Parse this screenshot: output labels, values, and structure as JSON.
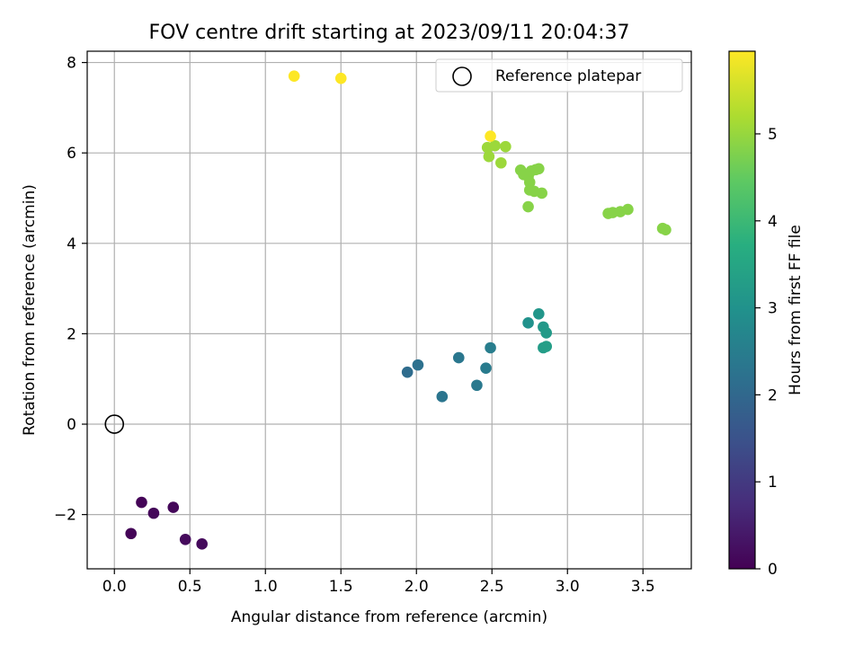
{
  "chart_data": {
    "type": "scatter",
    "title": "FOV centre drift starting at 2023/09/11 20:04:37",
    "xlabel": "Angular distance from reference (arcmin)",
    "ylabel": "Rotation from reference (arcmin)",
    "xlim": [
      -0.18,
      3.82
    ],
    "ylim": [
      -3.2,
      8.25
    ],
    "xticks": [
      0.0,
      0.5,
      1.0,
      1.5,
      2.0,
      2.5,
      3.0,
      3.5
    ],
    "xtick_labels": [
      "0.0",
      "0.5",
      "1.0",
      "1.5",
      "2.0",
      "2.5",
      "3.0",
      "3.5"
    ],
    "yticks": [
      -2,
      0,
      2,
      4,
      6,
      8
    ],
    "ytick_labels": [
      "−2",
      "0",
      "2",
      "4",
      "6",
      "8"
    ],
    "grid": true,
    "legend": {
      "placement": "top-right",
      "entries": [
        {
          "label": "Reference platepar",
          "marker": "open-circle"
        }
      ]
    },
    "reference_point": {
      "x": 0.0,
      "y": 0.0
    },
    "colorbar": {
      "label": "Hours from first FF file",
      "colormap": "viridis",
      "range": [
        0,
        5.95
      ],
      "ticks": [
        0,
        1,
        2,
        3,
        4,
        5
      ],
      "tick_labels": [
        "0",
        "1",
        "2",
        "3",
        "4",
        "5"
      ]
    },
    "points": [
      {
        "x": 0.11,
        "y": -2.42,
        "c": 0.05
      },
      {
        "x": 0.18,
        "y": -1.73,
        "c": 0.05
      },
      {
        "x": 0.26,
        "y": -1.97,
        "c": 0.1
      },
      {
        "x": 0.39,
        "y": -1.84,
        "c": 0.1
      },
      {
        "x": 0.47,
        "y": -2.55,
        "c": 0.15
      },
      {
        "x": 0.58,
        "y": -2.65,
        "c": 0.15
      },
      {
        "x": 1.94,
        "y": 1.15,
        "c": 2.1
      },
      {
        "x": 2.01,
        "y": 1.31,
        "c": 2.2
      },
      {
        "x": 2.17,
        "y": 0.61,
        "c": 2.3
      },
      {
        "x": 2.28,
        "y": 1.47,
        "c": 2.35
      },
      {
        "x": 2.4,
        "y": 0.86,
        "c": 2.4
      },
      {
        "x": 2.46,
        "y": 1.24,
        "c": 2.45
      },
      {
        "x": 2.49,
        "y": 1.69,
        "c": 2.5
      },
      {
        "x": 2.74,
        "y": 2.24,
        "c": 3.0
      },
      {
        "x": 2.81,
        "y": 2.44,
        "c": 3.1
      },
      {
        "x": 2.84,
        "y": 2.15,
        "c": 3.15
      },
      {
        "x": 2.86,
        "y": 2.02,
        "c": 3.2
      },
      {
        "x": 2.84,
        "y": 1.69,
        "c": 3.25
      },
      {
        "x": 2.86,
        "y": 1.72,
        "c": 3.3
      },
      {
        "x": 2.47,
        "y": 6.12,
        "c": 5.05
      },
      {
        "x": 2.52,
        "y": 6.16,
        "c": 5.05
      },
      {
        "x": 2.59,
        "y": 6.14,
        "c": 5.05
      },
      {
        "x": 2.48,
        "y": 5.92,
        "c": 5.05
      },
      {
        "x": 2.56,
        "y": 5.78,
        "c": 5.05
      },
      {
        "x": 2.69,
        "y": 5.62,
        "c": 4.85
      },
      {
        "x": 2.71,
        "y": 5.52,
        "c": 4.85
      },
      {
        "x": 2.74,
        "y": 5.48,
        "c": 4.85
      },
      {
        "x": 2.76,
        "y": 5.6,
        "c": 4.85
      },
      {
        "x": 2.79,
        "y": 5.63,
        "c": 4.85
      },
      {
        "x": 2.81,
        "y": 5.65,
        "c": 4.85
      },
      {
        "x": 2.75,
        "y": 5.35,
        "c": 4.85
      },
      {
        "x": 2.75,
        "y": 5.18,
        "c": 4.85
      },
      {
        "x": 2.78,
        "y": 5.15,
        "c": 4.85
      },
      {
        "x": 2.83,
        "y": 5.11,
        "c": 4.85
      },
      {
        "x": 2.74,
        "y": 4.81,
        "c": 4.85
      },
      {
        "x": 3.27,
        "y": 4.66,
        "c": 4.85
      },
      {
        "x": 3.3,
        "y": 4.68,
        "c": 4.85
      },
      {
        "x": 3.35,
        "y": 4.7,
        "c": 4.85
      },
      {
        "x": 3.4,
        "y": 4.75,
        "c": 4.85
      },
      {
        "x": 3.63,
        "y": 4.33,
        "c": 4.85
      },
      {
        "x": 3.65,
        "y": 4.3,
        "c": 4.85
      },
      {
        "x": 2.49,
        "y": 6.37,
        "c": 5.95
      },
      {
        "x": 1.19,
        "y": 7.7,
        "c": 5.95
      },
      {
        "x": 1.5,
        "y": 7.65,
        "c": 5.95
      }
    ]
  }
}
